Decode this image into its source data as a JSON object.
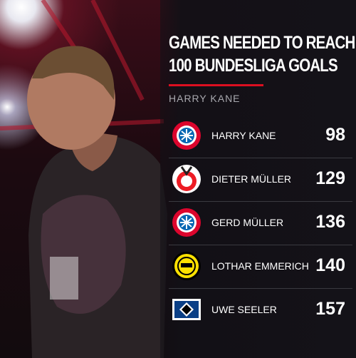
{
  "header": {
    "title_lines": [
      "GAMES NEEDED TO REACH",
      "100 BUNDESLIGA GOALS"
    ],
    "subtitle": "HARRY KANE"
  },
  "table": {
    "rows": [
      {
        "name": "HARRY KANE",
        "value": 98,
        "logo": "bayern"
      },
      {
        "name": "DIETER MÜLLER",
        "value": 129,
        "logo": "koln"
      },
      {
        "name": "GERD MÜLLER",
        "value": 136,
        "logo": "bayern"
      },
      {
        "name": "LOTHAR EMMERICH",
        "value": 140,
        "logo": "dortmund"
      },
      {
        "name": "UWE SEELER",
        "value": 157,
        "logo": "hsv"
      }
    ]
  }
}
